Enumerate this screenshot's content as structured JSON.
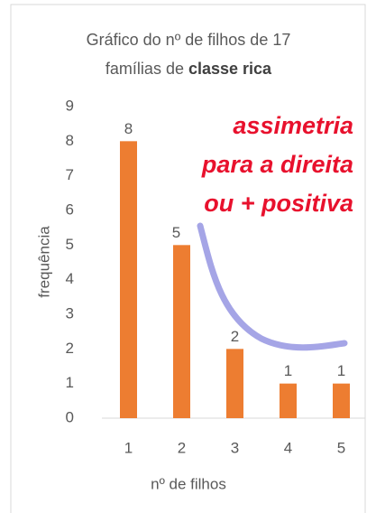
{
  "chart_data": {
    "type": "bar",
    "title": [
      "Gráfico do nº de filhos de 17",
      "famílias de",
      "classe rica"
    ],
    "annotation": [
      "assimetria",
      "para a direita",
      "ou + positiva"
    ],
    "x_label": "nº de filhos",
    "y_label": "frequência",
    "categories": [
      "1",
      "2",
      "3",
      "4",
      "5"
    ],
    "values": [
      8,
      5,
      2,
      1,
      1
    ],
    "color": "#ed7d31",
    "ylim": [
      0,
      9
    ],
    "yticks": [
      0,
      1,
      2,
      3,
      4,
      5,
      6,
      7,
      8,
      9
    ],
    "grid": false
  }
}
